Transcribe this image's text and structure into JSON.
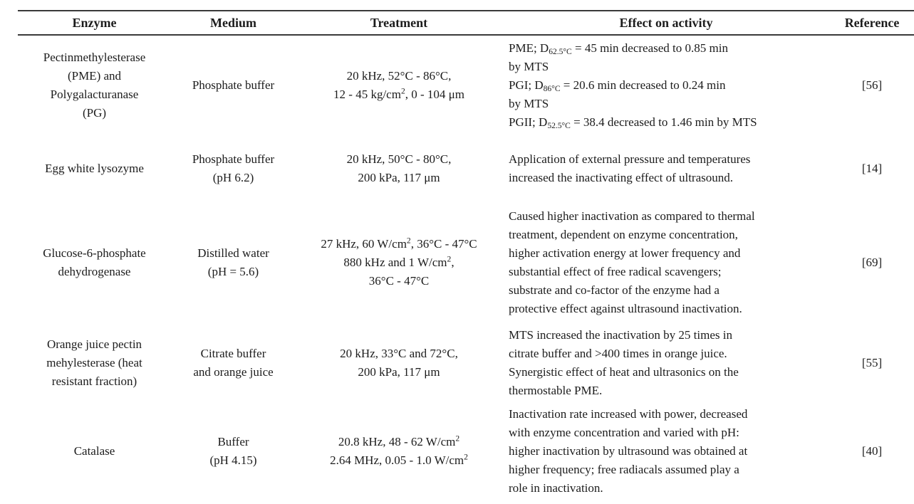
{
  "table": {
    "headers": [
      "Enzyme",
      "Medium",
      "Treatment",
      "Effect on activity",
      "Reference"
    ],
    "rows": [
      {
        "enzyme": "Pectinmethylesterase\n(PME) and\nPolygalacturanase\n(PG)",
        "medium": "Phosphate buffer",
        "treatment": "20 kHz, 52°C - 86°C,\n12 - 45 kg/cm^{2}, 0 - 104 μm",
        "effect": "PME; D~{62.5°C} = 45 min decreased to 0.85 min\nby MTS\nPGI; D~{86°C} = 20.6 min decreased to 0.24 min\nby MTS\nPGII; D~{52.5°C} = 38.4 decreased to 1.46 min by MTS",
        "reference": "[56]"
      },
      {
        "enzyme": "Egg white lysozyme",
        "medium": "Phosphate buffer\n(pH 6.2)",
        "treatment": "20 kHz, 50°C - 80°C,\n200 kPa, 117 μm",
        "effect": "Application of external pressure and temperatures\nincreased the inactivating effect of ultrasound.",
        "reference": "[14]"
      },
      {
        "enzyme": "Glucose-6-phosphate\ndehydrogenase",
        "medium": "Distilled water\n(pH = 5.6)",
        "treatment": "27 kHz, 60 W/cm^{2}, 36°C - 47°C\n880 kHz and 1 W/cm^{2},\n36°C - 47°C",
        "effect": "Caused higher inactivation as compared to thermal\ntreatment, dependent on enzyme concentration,\nhigher activation energy at lower frequency and\nsubstantial effect of free radical scavengers;\nsubstrate and co-factor of the enzyme had a\nprotective effect against ultrasound inactivation.",
        "reference": "[69]"
      },
      {
        "enzyme": "Orange juice pectin\nmehylesterase (heat\nresistant fraction)",
        "medium": "Citrate buffer\nand orange juice",
        "treatment": "20 kHz, 33°C and 72°C,\n200 kPa, 117 μm",
        "effect": "MTS increased the inactivation by 25 times in\ncitrate buffer and >400 times in orange juice.\nSynergistic effect of heat and ultrasonics on the\nthermostable PME.",
        "reference": "[55]"
      },
      {
        "enzyme": "Catalase",
        "medium": "Buffer\n(pH 4.15)",
        "treatment": "20.8 kHz, 48 - 62 W/cm^{2}\n2.64 MHz, 0.05 - 1.0 W/cm^{2}",
        "effect": "Inactivation rate increased with power, decreased\nwith enzyme concentration and varied with pH:\nhigher inactivation by ultrasound was obtained at\nhigher frequency; free radiacals assumed play a\nrole in inactivation.",
        "reference": "[40]"
      }
    ]
  },
  "colors": {
    "rule": "#3a3a3a",
    "text": "#1c1c1c",
    "background": "#ffffff"
  }
}
